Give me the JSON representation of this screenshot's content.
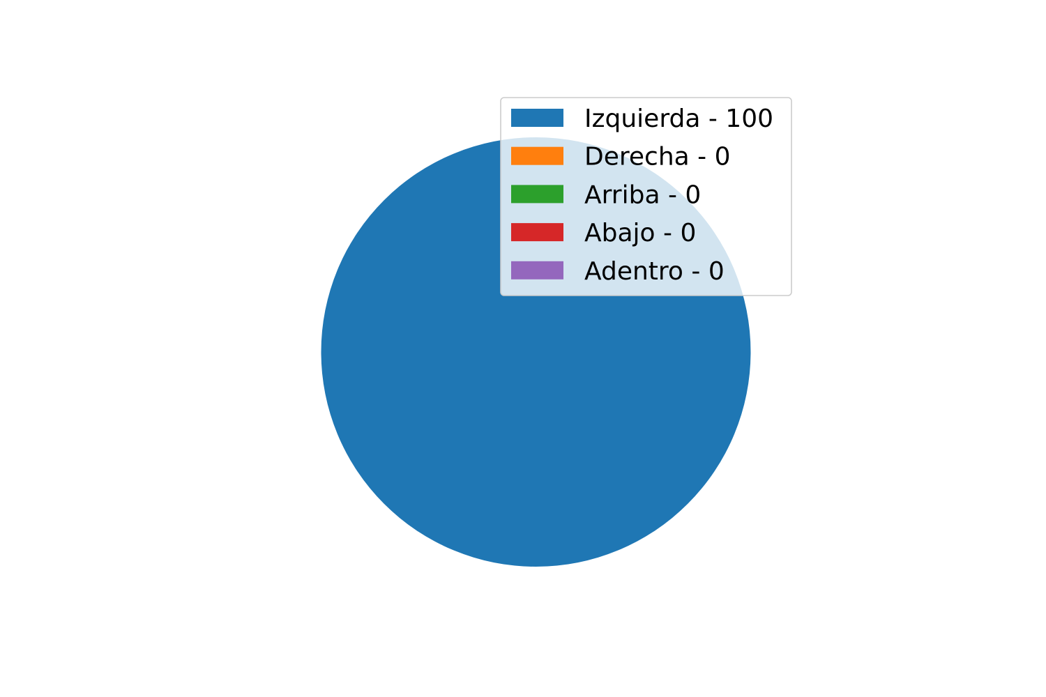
{
  "chart_data": {
    "type": "pie",
    "title": "",
    "legend_position": "top-right",
    "slices": [
      {
        "label": "Izquierda - 100",
        "value": 100,
        "color": "#1f77b4"
      },
      {
        "label": "Derecha - 0",
        "value": 0,
        "color": "#ff7f0e"
      },
      {
        "label": "Arriba - 0",
        "value": 0,
        "color": "#2ca02c"
      },
      {
        "label": "Abajo - 0",
        "value": 0,
        "color": "#d62728"
      },
      {
        "label": "Adentro - 0",
        "value": 0,
        "color": "#9467bd"
      }
    ]
  }
}
